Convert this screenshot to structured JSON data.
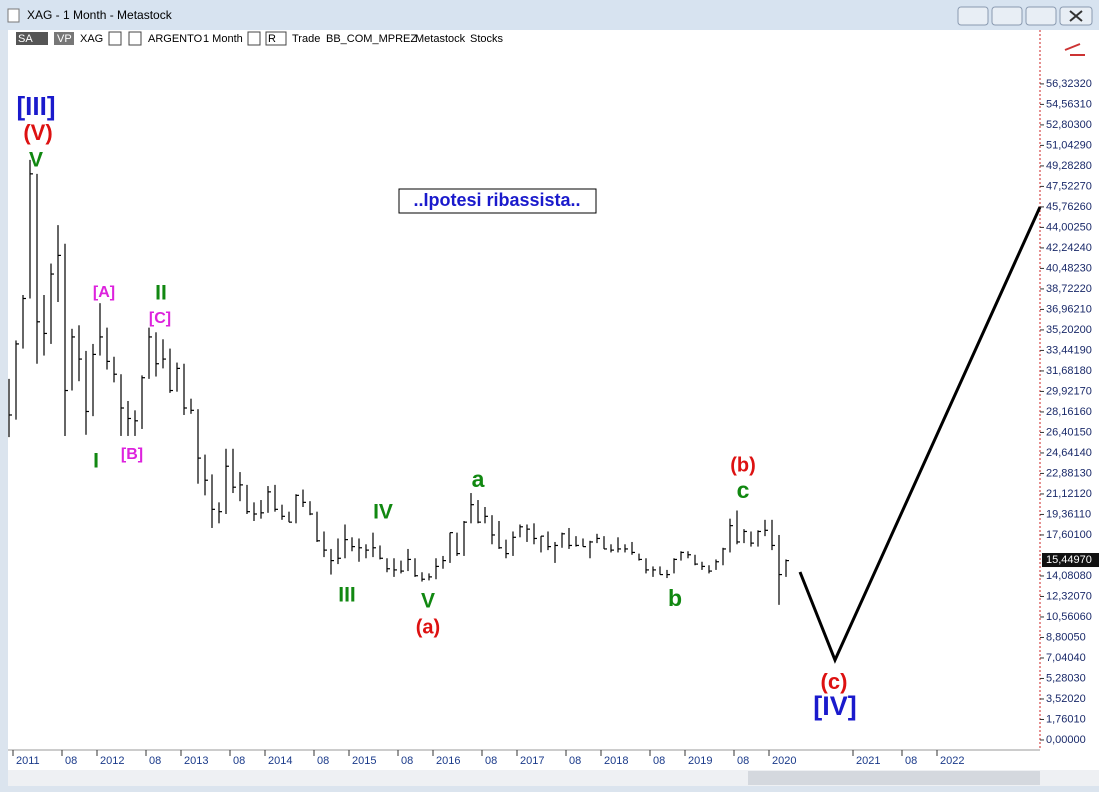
{
  "window_title": "XAG - 1 Month - Metastock",
  "toolbar": [
    "SA",
    "VP",
    "XAG",
    "ARGENTO",
    "1 Month",
    "R",
    "Trade",
    "BB_COM_MPREZ",
    "Metastock",
    "Stocks"
  ],
  "chart_data": {
    "type": "ohlc",
    "color": "#000000",
    "categories": [
      "2011",
      null,
      null,
      null,
      null,
      null,
      null,
      "08",
      null,
      null,
      null,
      null,
      "2012",
      null,
      null,
      null,
      null,
      null,
      null,
      "08",
      null,
      null,
      null,
      null,
      "2013",
      null,
      null,
      null,
      null,
      null,
      null,
      "08",
      null,
      null,
      null,
      null,
      "2014",
      null,
      null,
      null,
      null,
      null,
      null,
      "08",
      null,
      null,
      null,
      null,
      "2015",
      null,
      null,
      null,
      null,
      null,
      null,
      "08",
      null,
      null,
      null,
      null,
      "2016",
      null,
      null,
      null,
      null,
      null,
      null,
      "08",
      null,
      null,
      null,
      null,
      "2017",
      null,
      null,
      null,
      null,
      null,
      null,
      "08",
      null,
      null,
      null,
      null,
      "2018",
      null,
      null,
      null,
      null,
      null,
      null,
      "08",
      null,
      null,
      null,
      null,
      "2019",
      null,
      null,
      null,
      null,
      null,
      null,
      "08",
      null,
      null,
      null,
      null,
      "2020",
      null,
      null,
      null,
      null,
      null,
      null,
      null,
      null,
      null,
      null,
      null,
      "2021",
      null,
      null,
      null,
      null,
      null,
      null,
      "08",
      null,
      null,
      null,
      null,
      "2022",
      null,
      null,
      null,
      null,
      null,
      null,
      null,
      null,
      null,
      null,
      null
    ],
    "high": [
      31.0,
      34.3,
      38.2,
      49.8,
      48.6,
      38.2,
      40.9,
      44.2,
      42.6,
      35.3,
      35.6,
      33.4,
      34.0,
      37.5,
      35.4,
      32.9,
      31.4,
      29.1,
      28.3,
      31.3,
      35.4,
      35.0,
      34.4,
      33.6,
      32.4,
      32.3,
      29.3,
      28.4,
      24.5,
      22.8,
      20.4,
      25.0,
      25.0,
      23.0,
      21.9,
      20.4,
      20.6,
      21.8,
      21.9,
      20.2,
      19.6,
      21.1,
      21.5,
      20.5,
      19.6,
      17.9,
      16.4,
      17.3,
      18.5,
      17.4,
      17.3,
      16.8,
      17.8,
      16.7,
      15.6,
      15.6,
      15.4,
      16.4,
      15.6,
      14.4,
      14.3,
      15.6,
      15.8,
      17.8,
      17.8,
      18.8,
      21.2,
      20.6,
      20.0,
      19.3,
      18.8,
      17.2,
      17.9,
      18.5,
      18.5,
      18.6,
      17.5,
      17.9,
      17.0,
      17.8,
      18.2,
      17.5,
      17.3,
      17.1,
      17.7,
      17.5,
      16.8,
      17.4,
      16.8,
      17.0,
      16.0,
      15.6,
      14.9,
      14.9,
      14.6,
      15.6,
      16.2,
      16.2,
      15.9,
      15.3,
      15.0,
      15.5,
      16.5,
      19.0,
      19.7,
      18.1,
      17.9,
      18.0,
      18.9,
      18.9,
      17.6,
      15.5,
      null,
      null,
      null,
      null,
      null,
      null,
      null,
      null,
      null,
      null,
      null,
      null,
      null,
      null,
      null,
      null,
      null,
      null,
      null,
      null,
      null,
      null,
      null,
      null,
      null,
      null,
      null,
      null,
      null,
      null,
      null,
      null
    ],
    "low": [
      26.0,
      27.5,
      33.6,
      37.9,
      32.3,
      33.0,
      34.0,
      37.6,
      26.1,
      30.0,
      30.8,
      26.2,
      27.8,
      33.0,
      31.8,
      30.7,
      26.1,
      26.1,
      26.1,
      26.7,
      31.0,
      31.2,
      31.9,
      29.8,
      29.9,
      27.9,
      28.0,
      22.0,
      21.0,
      18.2,
      18.6,
      19.4,
      21.2,
      20.5,
      19.4,
      18.8,
      19.0,
      19.5,
      19.6,
      18.9,
      18.7,
      18.6,
      20.0,
      19.3,
      17.0,
      15.7,
      14.2,
      15.1,
      15.6,
      16.2,
      15.3,
      15.6,
      15.7,
      15.5,
      14.4,
      14.0,
      14.3,
      14.5,
      14.0,
      13.6,
      13.7,
      13.8,
      14.7,
      15.2,
      15.8,
      15.8,
      18.6,
      18.6,
      18.6,
      16.8,
      16.4,
      15.6,
      15.8,
      17.4,
      17.0,
      16.8,
      16.1,
      16.3,
      15.2,
      16.5,
      16.4,
      16.6,
      16.6,
      15.6,
      16.9,
      16.4,
      16.1,
      16.1,
      16.1,
      15.9,
      15.4,
      14.3,
      14.0,
      14.2,
      13.9,
      14.3,
      15.4,
      15.6,
      15.0,
      14.6,
      14.3,
      14.6,
      15.0,
      16.1,
      16.8,
      16.9,
      16.6,
      16.6,
      17.5,
      16.3,
      11.6,
      14.0,
      null,
      null,
      null,
      null,
      null,
      null,
      null,
      null,
      null,
      null,
      null,
      null,
      null,
      null,
      null,
      null,
      null,
      null,
      null,
      null,
      null,
      null,
      null,
      null,
      null,
      null,
      null,
      null,
      null,
      null,
      null,
      null
    ],
    "close": [
      27.9,
      34.0,
      37.9,
      48.6,
      35.9,
      34.9,
      40.0,
      41.6,
      30.0,
      34.6,
      32.7,
      28.2,
      33.1,
      34.6,
      32.5,
      31.4,
      28.5,
      27.6,
      27.4,
      31.1,
      34.6,
      32.3,
      32.7,
      30.0,
      31.9,
      28.5,
      28.3,
      24.2,
      22.3,
      19.8,
      19.6,
      23.5,
      21.7,
      21.9,
      19.6,
      19.4,
      19.5,
      21.3,
      19.8,
      19.2,
      18.7,
      21.0,
      20.4,
      19.4,
      17.1,
      16.3,
      15.4,
      15.6,
      17.2,
      16.6,
      16.5,
      16.3,
      16.5,
      15.6,
      14.7,
      14.6,
      14.5,
      15.5,
      14.1,
      13.8,
      14.0,
      14.9,
      15.4,
      17.8,
      16.0,
      18.7,
      20.2,
      18.7,
      19.2,
      17.6,
      16.5,
      16.0,
      17.4,
      18.3,
      18.1,
      17.3,
      17.5,
      16.6,
      16.7,
      17.7,
      16.7,
      16.7,
      16.6,
      17.0,
      17.3,
      16.4,
      16.3,
      16.4,
      16.4,
      16.1,
      15.5,
      14.6,
      14.6,
      14.2,
      14.2,
      15.5,
      16.1,
      15.9,
      15.1,
      14.9,
      14.5,
      15.3,
      16.4,
      18.4,
      17.0,
      17.9,
      16.9,
      17.9,
      18.0,
      16.7,
      14.2,
      15.4,
      null,
      null,
      null,
      null,
      null,
      null,
      null,
      null,
      null,
      null,
      null,
      null,
      null,
      null,
      null,
      null,
      null,
      null,
      null,
      null,
      null,
      null,
      null,
      null,
      null,
      null,
      null,
      null,
      null,
      null,
      null,
      null
    ],
    "ylim": [
      -0.86,
      60.95
    ],
    "yticks": [
      {
        "value": 0,
        "label": "0,00000"
      },
      {
        "value": 1.7601,
        "label": "1,76010"
      },
      {
        "value": 3.5202,
        "label": "3,52020"
      },
      {
        "value": 5.2803,
        "label": "5,28030"
      },
      {
        "value": 7.0404,
        "label": "7,04040"
      },
      {
        "value": 8.8005,
        "label": "8,80050"
      },
      {
        "value": 10.5606,
        "label": "10,56060"
      },
      {
        "value": 12.3207,
        "label": "12,32070"
      },
      {
        "value": 14.0808,
        "label": "14,08080"
      },
      {
        "value": 17.601,
        "label": "17,60100"
      },
      {
        "value": 19.3611,
        "label": "19,36110"
      },
      {
        "value": 21.1212,
        "label": "21,12120"
      },
      {
        "value": 22.8813,
        "label": "22,88130"
      },
      {
        "value": 24.6414,
        "label": "24,64140"
      },
      {
        "value": 26.4015,
        "label": "26,40150"
      },
      {
        "value": 28.1616,
        "label": "28,16160"
      },
      {
        "value": 29.9217,
        "label": "29,92170"
      },
      {
        "value": 31.6818,
        "label": "31,68180"
      },
      {
        "value": 33.4419,
        "label": "33,44190"
      },
      {
        "value": 35.202,
        "label": "35,20200"
      },
      {
        "value": 36.9621,
        "label": "36,96210"
      },
      {
        "value": 38.7222,
        "label": "38,72220"
      },
      {
        "value": 40.4823,
        "label": "40,48230"
      },
      {
        "value": 42.2424,
        "label": "42,24240"
      },
      {
        "value": 44.0025,
        "label": "44,00250"
      },
      {
        "value": 45.7626,
        "label": "45,76260"
      },
      {
        "value": 47.5227,
        "label": "47,52270"
      },
      {
        "value": 49.2828,
        "label": "49,28280"
      },
      {
        "value": 51.0429,
        "label": "51,04290"
      },
      {
        "value": 52.803,
        "label": "52,80300"
      },
      {
        "value": 54.5631,
        "label": "54,56310"
      },
      {
        "value": 56.3232,
        "label": "56,32320"
      }
    ],
    "last_price": {
      "value": 15.4497,
      "label": "15,44970"
    },
    "note": "..Ipotesi ribassista..",
    "annotations": [
      {
        "text": "[III]",
        "color": "#1a1acc"
      },
      {
        "text": "(V)",
        "color": "#dd1111"
      },
      {
        "text": "V",
        "color": "#118811"
      },
      {
        "text": "[A]",
        "color": "#dd22dd"
      },
      {
        "text": "II",
        "color": "#118811"
      },
      {
        "text": "[C]",
        "color": "#dd22dd"
      },
      {
        "text": "I",
        "color": "#118811"
      },
      {
        "text": "[B]",
        "color": "#dd22dd"
      },
      {
        "text": "IV",
        "color": "#118811"
      },
      {
        "text": "III",
        "color": "#118811"
      },
      {
        "text": "V",
        "color": "#118811"
      },
      {
        "text": "(a)",
        "color": "#dd1111"
      },
      {
        "text": "a",
        "color": "#118811"
      },
      {
        "text": "b",
        "color": "#118811"
      },
      {
        "text": "(b)",
        "color": "#dd1111"
      },
      {
        "text": "c",
        "color": "#118811"
      },
      {
        "text": "(c)",
        "color": "#dd1111"
      },
      {
        "text": "[IV]",
        "color": "#1a1acc"
      }
    ]
  }
}
